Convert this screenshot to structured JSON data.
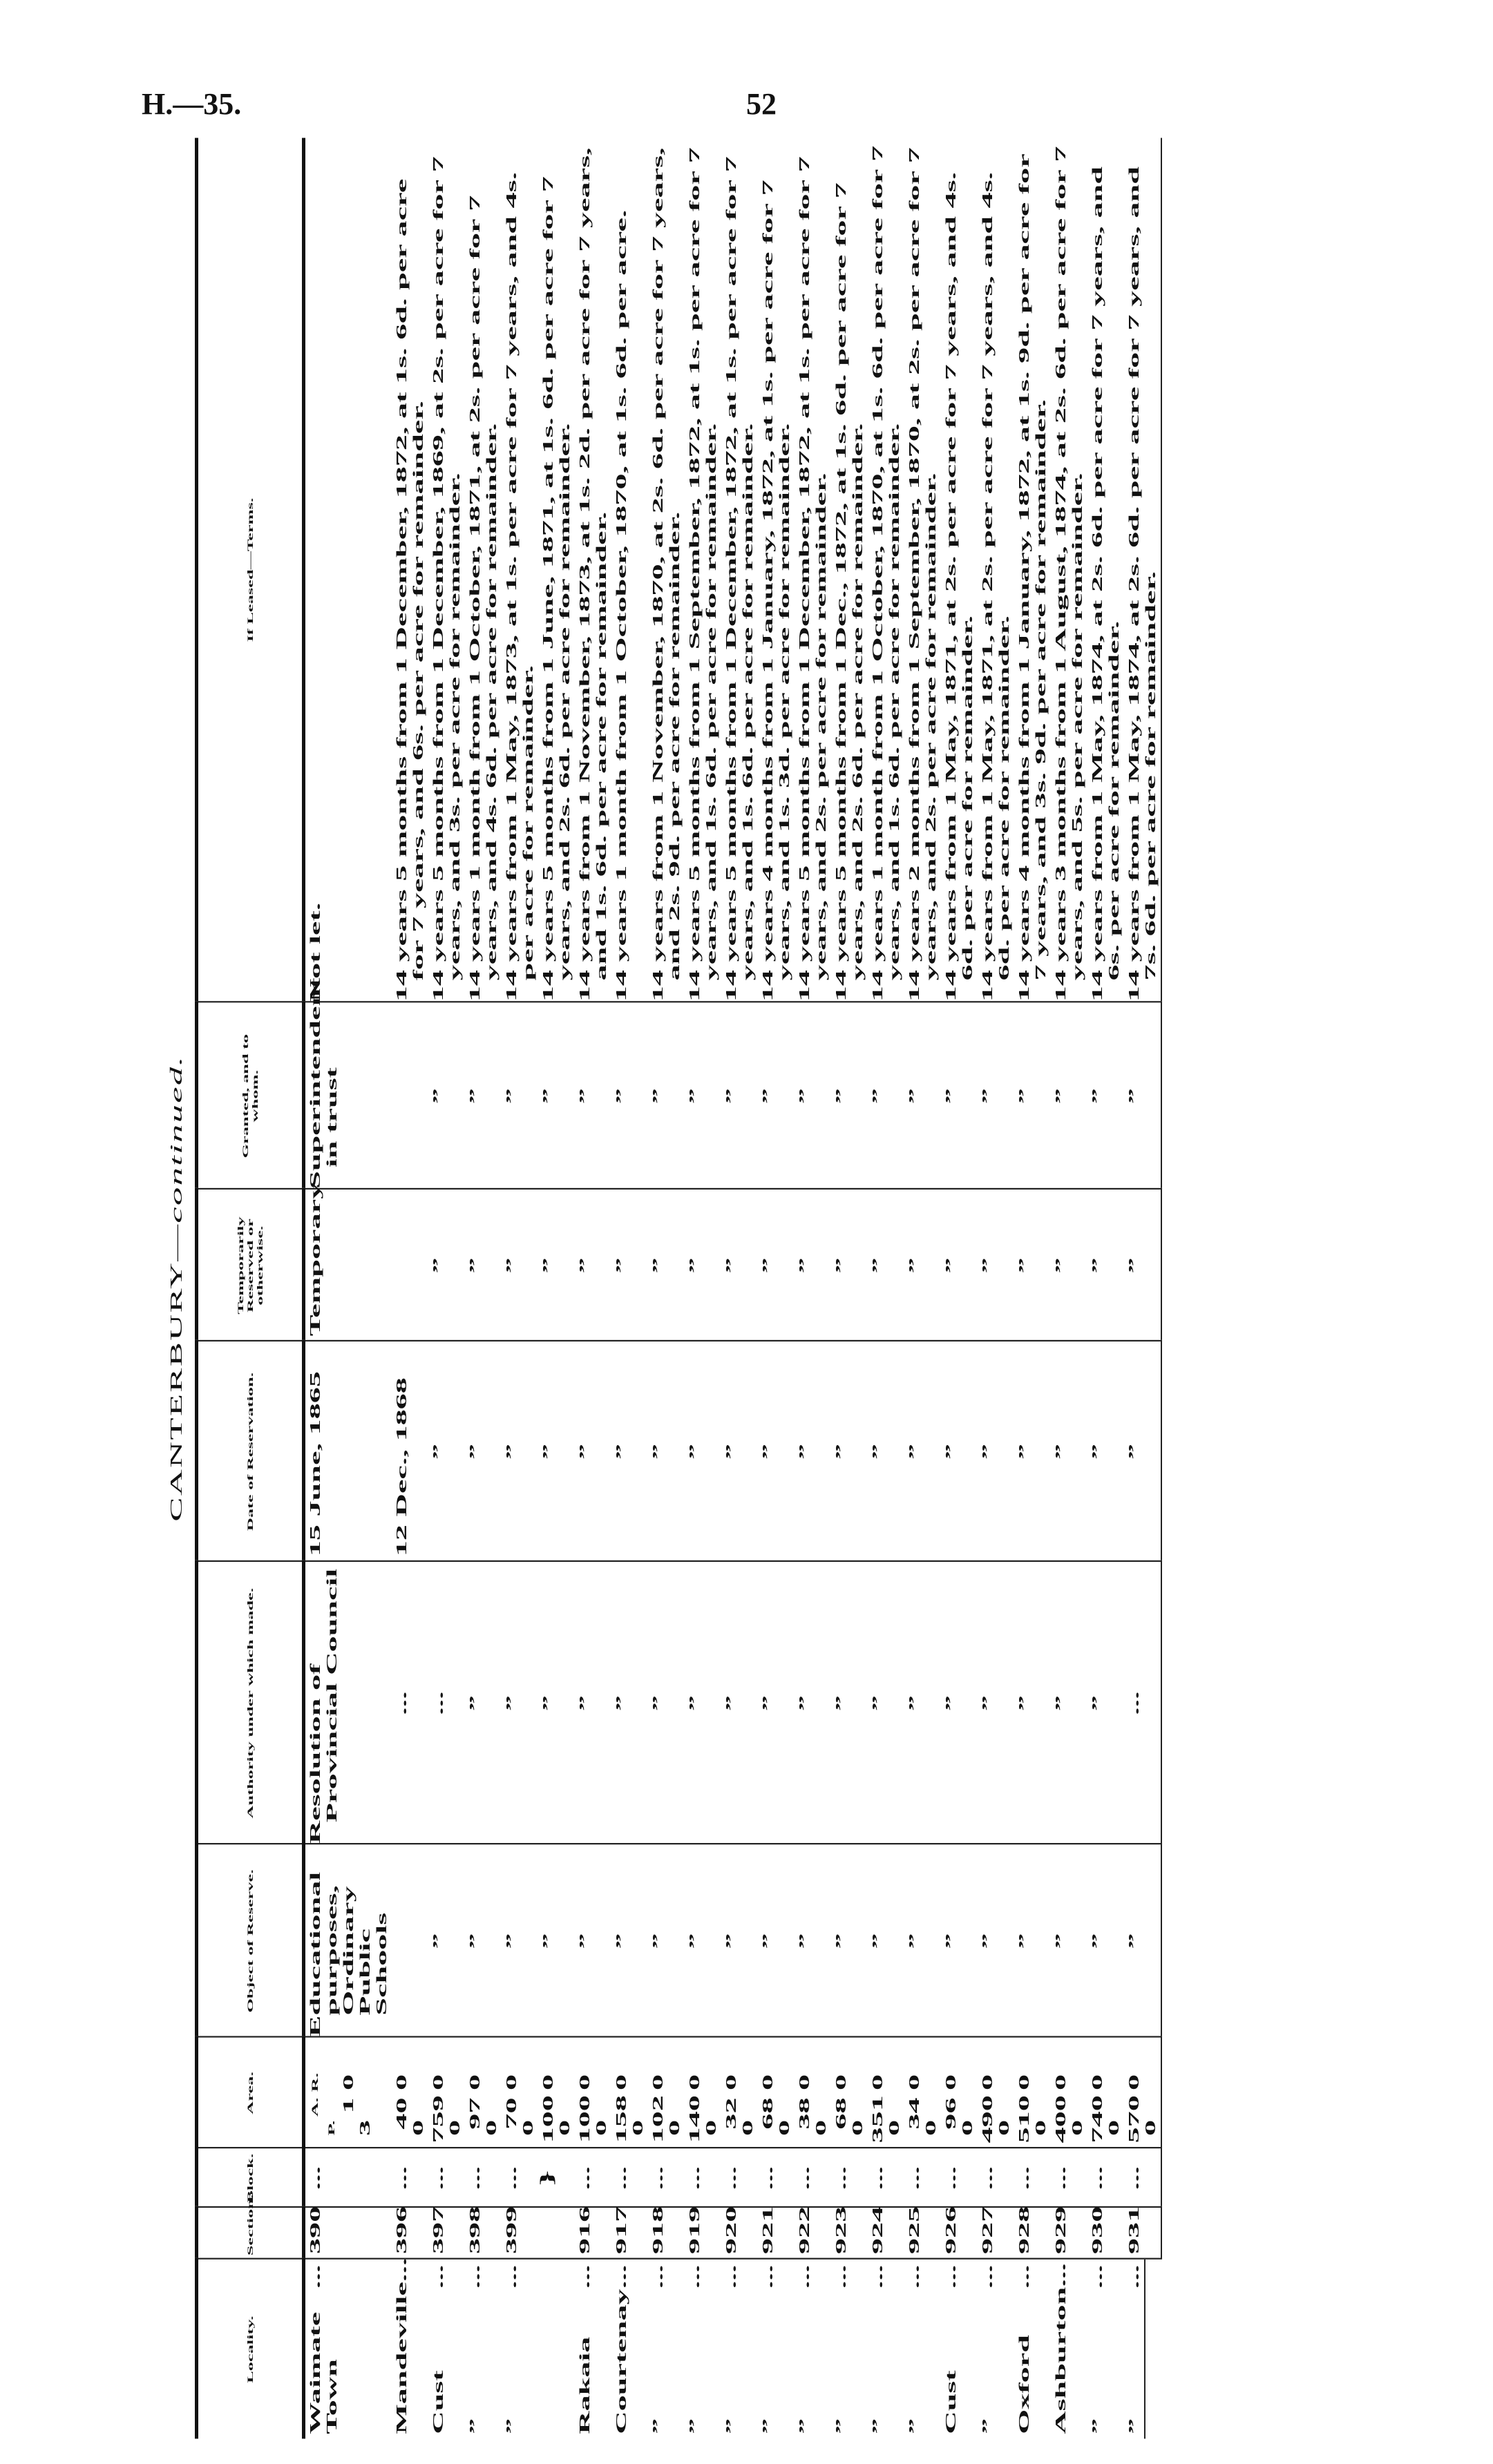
{
  "page_header": {
    "code": "H.—35.",
    "page_number": "52"
  },
  "table_title": {
    "main": "CANTERBURY—",
    "suffix": "continued."
  },
  "columns": [
    "Locality.",
    "Section.",
    "Block.",
    "Area.",
    "Object of Reserve.",
    "Authority under which made.",
    "Date of Reservation.",
    "Temporarily Reserved or otherwise.",
    "Granted, and to whom.",
    "If Leased—Terms."
  ],
  "area_units": [
    "A.",
    "R.",
    "P."
  ],
  "dots": "...",
  "ditto": "”",
  "rows": [
    {
      "locality": "Waimate Town",
      "section": "390",
      "block": "...",
      "area": [
        "1",
        "0",
        "3"
      ],
      "object": "Educational purposes, Ordinary Public Schools",
      "authority": "Resolution of Provincial Council",
      "date": "15 June, 1865",
      "temp": "Temporary",
      "granted": "Superintendent in trust",
      "terms": "Not let."
    },
    {
      "locality": "Mandeville",
      "section": "396",
      "block": "...",
      "area": [
        "40",
        "0",
        "0"
      ],
      "object": "",
      "authority": "...",
      "date": "12 Dec., 1868",
      "temp": "",
      "granted": "",
      "terms": "14 years 5 months from 1 December, 1872, at 1s. 6d. per acre for 7 years, and 6s. per acre for remainder."
    },
    {
      "locality": "Cust",
      "section": "397",
      "block": "...",
      "area": [
        "759",
        "0",
        "0"
      ],
      "object": "”",
      "authority": "...",
      "date": "”",
      "temp": "”",
      "granted": "”",
      "terms": "14 years 5 months from 1 December, 1869, at 2s. per acre for 7 years, and 3s. per acre for remainder."
    },
    {
      "locality": "”",
      "section": "398",
      "block": "...",
      "area": [
        "97",
        "0",
        "0"
      ],
      "object": "”",
      "authority": "”",
      "date": "”",
      "temp": "”",
      "granted": "”",
      "terms": "14 years 1 month from 1 October, 1871, at 2s. per acre for 7 years, and 4s. 6d. per acre for remainder."
    },
    {
      "locality": "”",
      "section": "399",
      "block": "...",
      "area": [
        "70",
        "0",
        "0"
      ],
      "object": "”",
      "authority": "”",
      "date": "”",
      "temp": "”",
      "granted": "”",
      "terms": "14 years from 1 May, 1873, at 1s. per acre for 7 years, and 4s. per acre for remainder."
    },
    {
      "locality": "",
      "section": "",
      "block": "",
      "brace": true,
      "area": [
        "100",
        "0",
        "0"
      ],
      "object": "”",
      "authority": "”",
      "date": "”",
      "temp": "”",
      "granted": "”",
      "terms": "14 years 5 months from 1 June, 1871, at 1s. 6d. per acre for 7 years, and 2s. 6d. per acre for remainder."
    },
    {
      "locality": "Rakaia",
      "section": "916",
      "block": "...",
      "area": [
        "100",
        "0",
        "0"
      ],
      "object": "”",
      "authority": "”",
      "date": "”",
      "temp": "”",
      "granted": "”",
      "terms": "14 years from 1 November, 1873, at 1s. 2d. per acre for 7 years, and 1s. 6d. per acre for remainder."
    },
    {
      "locality": "Courtenay",
      "section": "917",
      "block": "...",
      "area": [
        "158",
        "0",
        "0"
      ],
      "object": "”",
      "authority": "”",
      "date": "”",
      "temp": "”",
      "granted": "”",
      "terms": "14 years 1 month from 1 October, 1870, at 1s. 6d. per acre."
    },
    {
      "locality": "”",
      "section": "918",
      "block": "...",
      "area": [
        "102",
        "0",
        "0"
      ],
      "object": "”",
      "authority": "”",
      "date": "”",
      "temp": "”",
      "granted": "”",
      "terms": "14 years from 1 November, 1870, at 2s. 6d. per acre for 7 years, and 2s. 9d. per acre for remainder."
    },
    {
      "locality": "”",
      "section": "919",
      "block": "...",
      "area": [
        "140",
        "0",
        "0"
      ],
      "object": "”",
      "authority": "”",
      "date": "”",
      "temp": "”",
      "granted": "”",
      "terms": "14 years 5 months from 1 September, 1872, at 1s. per acre for 7 years, and 1s. 6d. per acre for remainder."
    },
    {
      "locality": "”",
      "section": "920",
      "block": "...",
      "area": [
        "32",
        "0",
        "0"
      ],
      "object": "”",
      "authority": "”",
      "date": "”",
      "temp": "”",
      "granted": "”",
      "terms": "14 years 5 months from 1 December, 1872, at 1s. per acre for 7 years, and 1s. 6d. per acre for remainder."
    },
    {
      "locality": "”",
      "section": "921",
      "block": "...",
      "area": [
        "68",
        "0",
        "0"
      ],
      "object": "”",
      "authority": "”",
      "date": "”",
      "temp": "”",
      "granted": "”",
      "terms": "14 years 4 months from 1 January, 1872, at 1s. per acre for 7 years, and 1s. 3d. per acre for remainder."
    },
    {
      "locality": "”",
      "section": "922",
      "block": "...",
      "area": [
        "38",
        "0",
        "0"
      ],
      "object": "”",
      "authority": "”",
      "date": "”",
      "temp": "”",
      "granted": "”",
      "terms": "14 years 5 months from 1 December, 1872, at 1s. per acre for 7 years, and 2s. per acre for remainder."
    },
    {
      "locality": "”",
      "section": "923",
      "block": "...",
      "area": [
        "68",
        "0",
        "0"
      ],
      "object": "”",
      "authority": "”",
      "date": "”",
      "temp": "”",
      "granted": "”",
      "terms": "14 years 5 months from 1 Dec., 1872, at 1s. 6d. per acre for 7 years, and 2s. 6d. per acre for remainder."
    },
    {
      "locality": "”",
      "section": "924",
      "block": "...",
      "area": [
        "351",
        "0",
        "0"
      ],
      "object": "”",
      "authority": "”",
      "date": "”",
      "temp": "”",
      "granted": "”",
      "terms": "14 years 1 month from 1 October, 1870, at 1s. 6d. per acre for 7 years, and 1s. 6d. per acre for remainder."
    },
    {
      "locality": "”",
      "section": "925",
      "block": "...",
      "area": [
        "34",
        "0",
        "0"
      ],
      "object": "”",
      "authority": "”",
      "date": "”",
      "temp": "”",
      "granted": "”",
      "terms": "14 years 2 months from 1 September, 1870, at 2s. per acre for 7 years, and 2s. per acre for remainder."
    },
    {
      "locality": "Cust",
      "section": "926",
      "block": "...",
      "area": [
        "96",
        "0",
        "0"
      ],
      "object": "”",
      "authority": "”",
      "date": "”",
      "temp": "”",
      "granted": "”",
      "terms": "14 years from 1 May, 1871, at 2s. per acre for 7 years, and 4s. 6d. per acre for remainder."
    },
    {
      "locality": "”",
      "section": "927",
      "block": "...",
      "area": [
        "490",
        "0",
        "0"
      ],
      "object": "”",
      "authority": "”",
      "date": "”",
      "temp": "”",
      "granted": "”",
      "terms": "14 years from 1 May, 1871, at 2s. per acre for 7 years, and 4s. 6d. per acre for remainder."
    },
    {
      "locality": "Oxford",
      "section": "928",
      "block": "...",
      "area": [
        "510",
        "0",
        "0"
      ],
      "object": "”",
      "authority": "”",
      "date": "”",
      "temp": "”",
      "granted": "”",
      "terms": "14 years 4 months from 1 January, 1872, at 1s. 9d. per acre for 7 years, and 3s. 9d. per acre for remainder."
    },
    {
      "locality": "Ashburton",
      "section": "929",
      "block": "...",
      "area": [
        "400",
        "0",
        "0"
      ],
      "object": "”",
      "authority": "”",
      "date": "”",
      "temp": "”",
      "granted": "”",
      "terms": "14 years 3 months from 1 August, 1874, at 2s. 6d. per acre for 7 years, and 5s. per acre for remainder."
    },
    {
      "locality": "”",
      "section": "930",
      "block": "...",
      "area": [
        "740",
        "0",
        "0"
      ],
      "object": "”",
      "authority": "”",
      "date": "”",
      "temp": "”",
      "granted": "”",
      "terms": "14 years from 1 May, 1874, at 2s. 6d. per acre for 7 years, and 6s. per acre for remainder."
    },
    {
      "locality": "”",
      "section": "931",
      "block": "...",
      "area": [
        "570",
        "0",
        "0"
      ],
      "object": "”",
      "authority": "...",
      "date": "”",
      "temp": "”",
      "granted": "”",
      "terms": "14 years from 1 May, 1874, at 2s. 6d. per acre for 7 years, and 7s. 6d. per acre for remainder."
    }
  ]
}
